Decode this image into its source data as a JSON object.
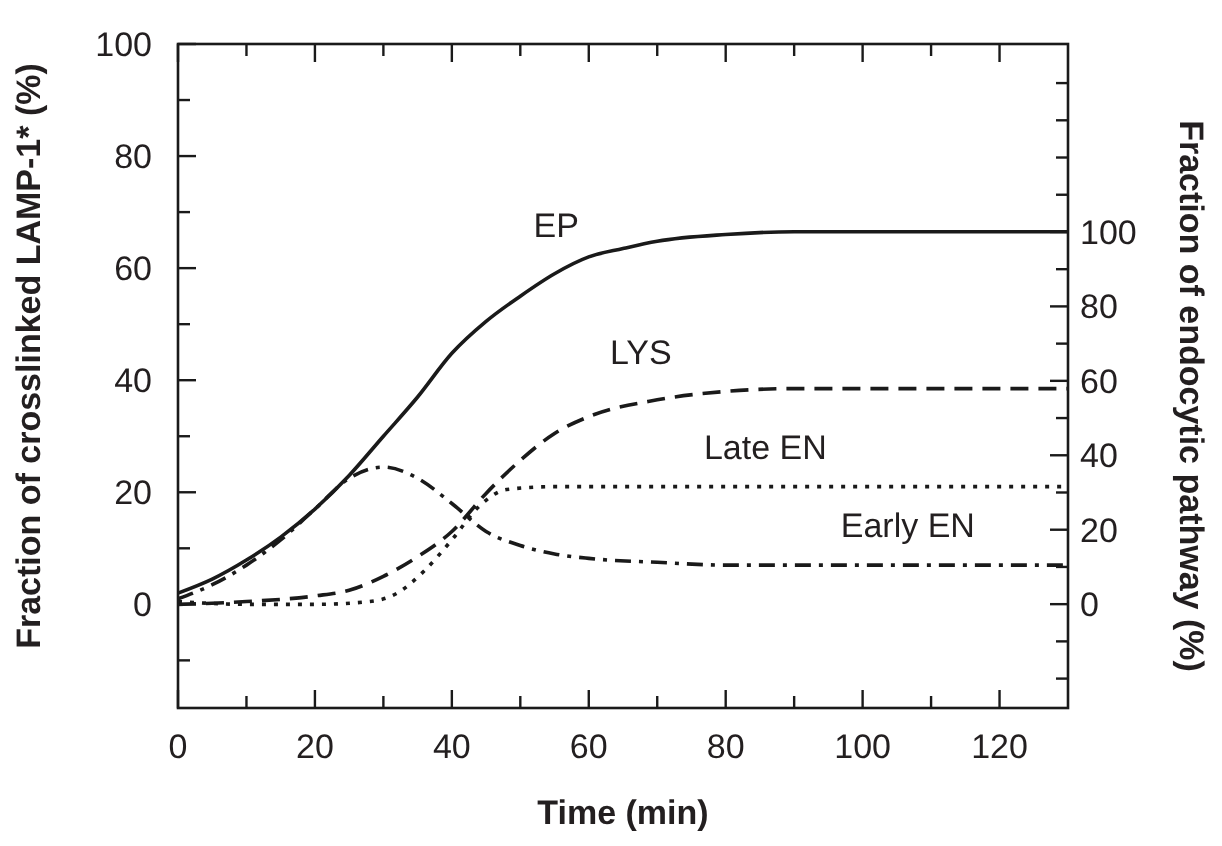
{
  "chart_data": {
    "type": "line",
    "xlabel": "Time (min)",
    "ylabel": "Fraction of crosslinked LAMP-1* (%)",
    "y2label": "Fraction of endocytic pathway (%)",
    "xlim": [
      0,
      130
    ],
    "xticks": [
      0,
      {
        "value": 10,
        "label": null
      },
      20,
      {
        "value": 30,
        "label": null
      },
      40,
      {
        "value": 50,
        "label": null
      },
      60,
      {
        "value": 70,
        "label": null
      },
      80,
      {
        "value": 90,
        "label": null
      },
      100,
      {
        "value": 110,
        "label": null
      },
      120
    ],
    "ylim": [
      -18.5,
      100
    ],
    "yticks": [
      {
        "value": -10,
        "label": null
      },
      0,
      {
        "value": 10,
        "label": null
      },
      20,
      {
        "value": 30,
        "label": null
      },
      40,
      {
        "value": 50,
        "label": null
      },
      60,
      {
        "value": 70,
        "label": null
      },
      80,
      {
        "value": 90,
        "label": null
      },
      100
    ],
    "y2lim": [
      -27.9,
      150.5
    ],
    "y2ticks": [
      {
        "value": -20,
        "label": null
      },
      {
        "value": -10,
        "label": null
      },
      0,
      {
        "value": 10,
        "label": null
      },
      20,
      {
        "value": 30,
        "label": null
      },
      40,
      {
        "value": 50,
        "label": null
      },
      60,
      {
        "value": 70,
        "label": null
      },
      80,
      {
        "value": 90,
        "label": null
      },
      100,
      {
        "value": 110,
        "label": null
      },
      {
        "value": 120,
        "label": null
      },
      {
        "value": 130,
        "label": null
      },
      {
        "value": 140,
        "label": null
      }
    ],
    "grid": false,
    "marker": "none",
    "series": [
      {
        "name": "EP",
        "color": "#1a1a1a",
        "line_style": "solid",
        "x": [
          0,
          5,
          10,
          15,
          20,
          25,
          30,
          35,
          40,
          45,
          50,
          55,
          60,
          65,
          70,
          80,
          90,
          100,
          130
        ],
        "values": [
          2,
          4.5,
          7.9,
          12,
          17,
          23,
          30,
          37,
          44.8,
          50.5,
          55,
          59,
          62,
          63.5,
          64.8,
          66,
          66.5,
          66.5,
          66.5
        ]
      },
      {
        "name": "LYS",
        "color": "#1a1a1a",
        "line_style": "dashed",
        "x": [
          0,
          10,
          20,
          25,
          30,
          35,
          40,
          45,
          50,
          55,
          60,
          70,
          80,
          90,
          130
        ],
        "values": [
          0,
          0.5,
          1.5,
          2.5,
          5,
          8.5,
          13,
          19.8,
          25.7,
          30.5,
          33.5,
          36.5,
          38,
          38.5,
          38.5
        ]
      },
      {
        "name": "Late EN",
        "color": "#1a1a1a",
        "line_style": "dotted",
        "x": [
          0,
          10,
          20,
          28,
          32,
          36,
          40,
          44,
          48,
          55,
          130
        ],
        "values": [
          0.5,
          0,
          0,
          0.5,
          2,
          6,
          11.5,
          17.5,
          20.5,
          21,
          21
        ]
      },
      {
        "name": "Early EN",
        "color": "#1a1a1a",
        "line_style": "dashdot",
        "x": [
          0,
          5,
          10,
          15,
          20,
          25,
          30,
          35,
          40,
          45,
          50,
          55,
          60,
          70,
          80,
          130
        ],
        "values": [
          1,
          3.5,
          7,
          11.5,
          17,
          22.5,
          24.5,
          22.5,
          18,
          13,
          10.5,
          9,
          8.2,
          7.5,
          7,
          7
        ]
      }
    ],
    "legend": false
  }
}
